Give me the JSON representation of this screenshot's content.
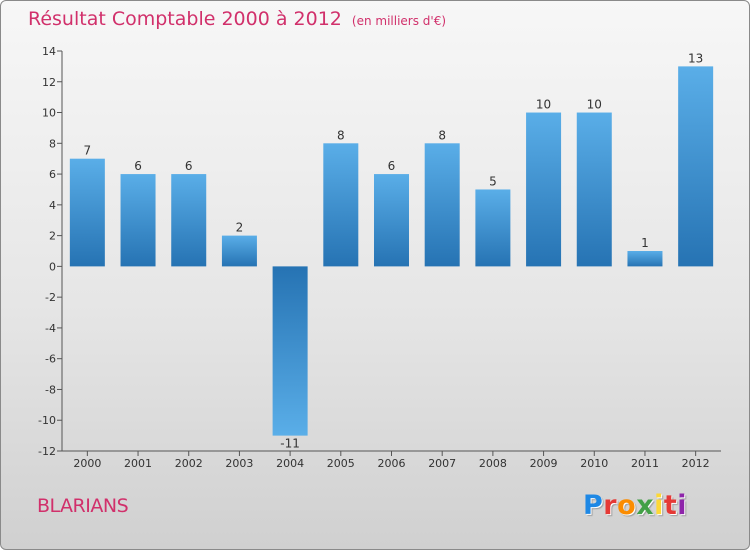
{
  "title": "Résultat Comptable 2000 à 2012",
  "unit_label": "(en milliers d'€)",
  "place": "BLARIANS",
  "logo": {
    "letters": [
      "P",
      "r",
      "o",
      "x",
      "i",
      "t",
      "i"
    ],
    "colors": [
      "#1e88e5",
      "#e53935",
      "#fb8c00",
      "#43a047",
      "#fdd835",
      "#e53935",
      "#8e24aa"
    ]
  },
  "chart_data": {
    "type": "bar",
    "title": "Résultat Comptable 2000 à 2012",
    "ylabel": "(en milliers d'€)",
    "categories": [
      "2000",
      "2001",
      "2002",
      "2003",
      "2004",
      "2005",
      "2006",
      "2007",
      "2008",
      "2009",
      "2010",
      "2011",
      "2012"
    ],
    "values": [
      7,
      6,
      6,
      2,
      -11,
      8,
      6,
      8,
      5,
      10,
      10,
      1,
      13
    ],
    "value_labels": [
      "7",
      "6",
      "6",
      "2",
      "-11",
      "8",
      "6",
      "8",
      "5",
      "10",
      "10",
      "1",
      "13"
    ],
    "yticks": [
      -12,
      -10,
      -8,
      -6,
      -4,
      -2,
      0,
      2,
      4,
      6,
      8,
      10,
      12,
      14
    ],
    "ylim": [
      -12,
      14
    ],
    "bar_color": "#3d9ad8"
  }
}
